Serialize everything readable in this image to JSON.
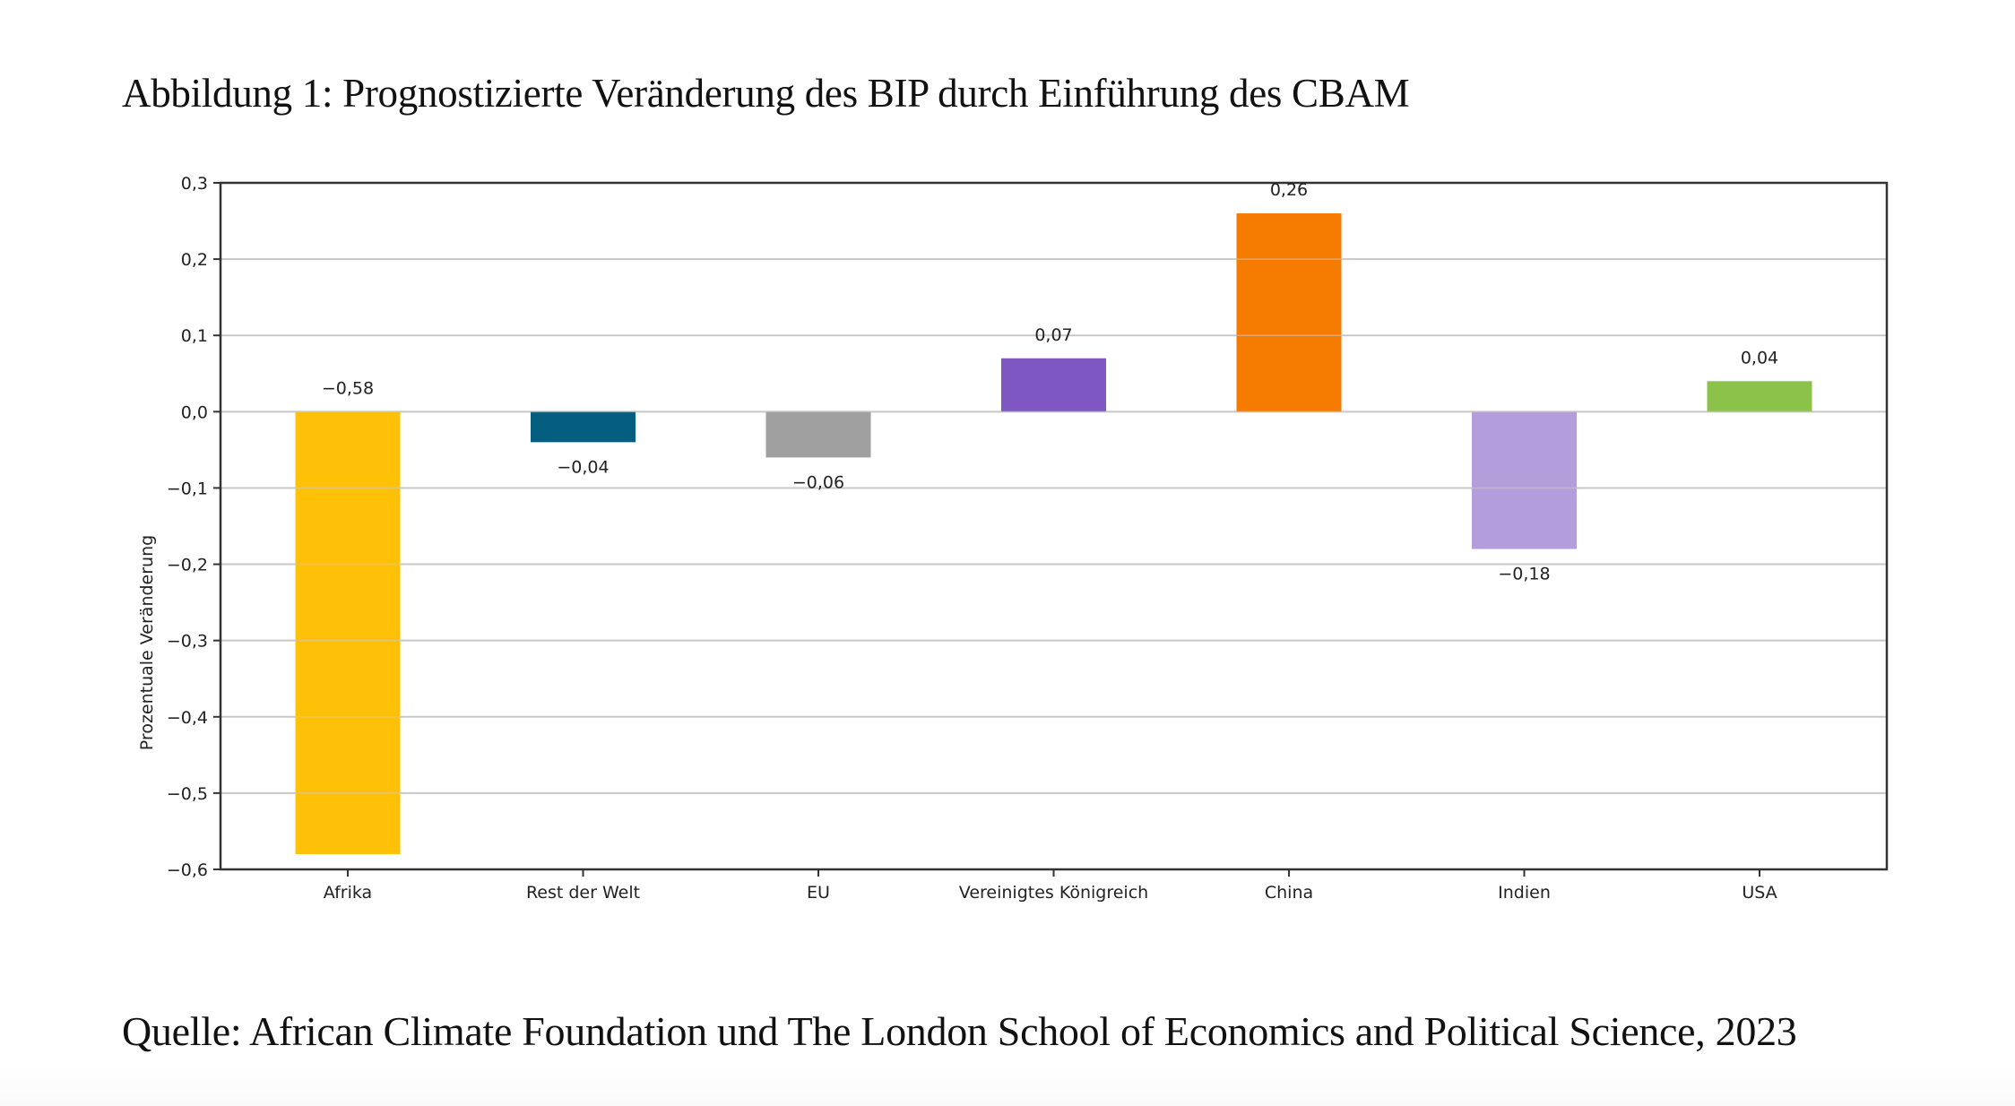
{
  "document": {
    "figure_caption": "Abbildung 1: Prognostizierte Veränderung des BIP durch Einführung des CBAM",
    "source_note": "Quelle: African Climate Foundation und The London School of Economics and Political Science, 2023"
  },
  "chart_data": {
    "type": "bar",
    "title": "Abbildung 1: Prognostizierte Veränderung des BIP durch Einführung des CBAM",
    "xlabel": "",
    "ylabel": "Prozentuale Veränderung",
    "categories": [
      "Afrika",
      "Rest der Welt",
      "EU",
      "Vereinigtes Königreich",
      "China",
      "Indien",
      "USA"
    ],
    "values": [
      -0.58,
      -0.04,
      -0.06,
      0.07,
      0.26,
      -0.18,
      0.04
    ],
    "value_labels": [
      "−0,58",
      "−0,04",
      "−0,06",
      "0,07",
      "0,26",
      "−0,18",
      "0,04"
    ],
    "colors": [
      "#FFC107",
      "#045E80",
      "#A0A0A0",
      "#7E57C2",
      "#F57C00",
      "#B39DDB",
      "#8BC34A"
    ],
    "ylim": [
      -0.6,
      0.3
    ],
    "yticks": [
      0.3,
      0.2,
      0.1,
      0.0,
      -0.1,
      -0.2,
      -0.3,
      -0.4,
      -0.5,
      -0.6
    ],
    "ytick_labels": [
      "0,3",
      "0,2",
      "0,1",
      "0,0",
      "−0,1",
      "−0,2",
      "−0,3",
      "−0,4",
      "−0,5",
      "−0,6"
    ],
    "grid": "horizontal",
    "legend": "none",
    "notes": "Label for Afrika is drawn above the zero line, not at the bar end."
  }
}
